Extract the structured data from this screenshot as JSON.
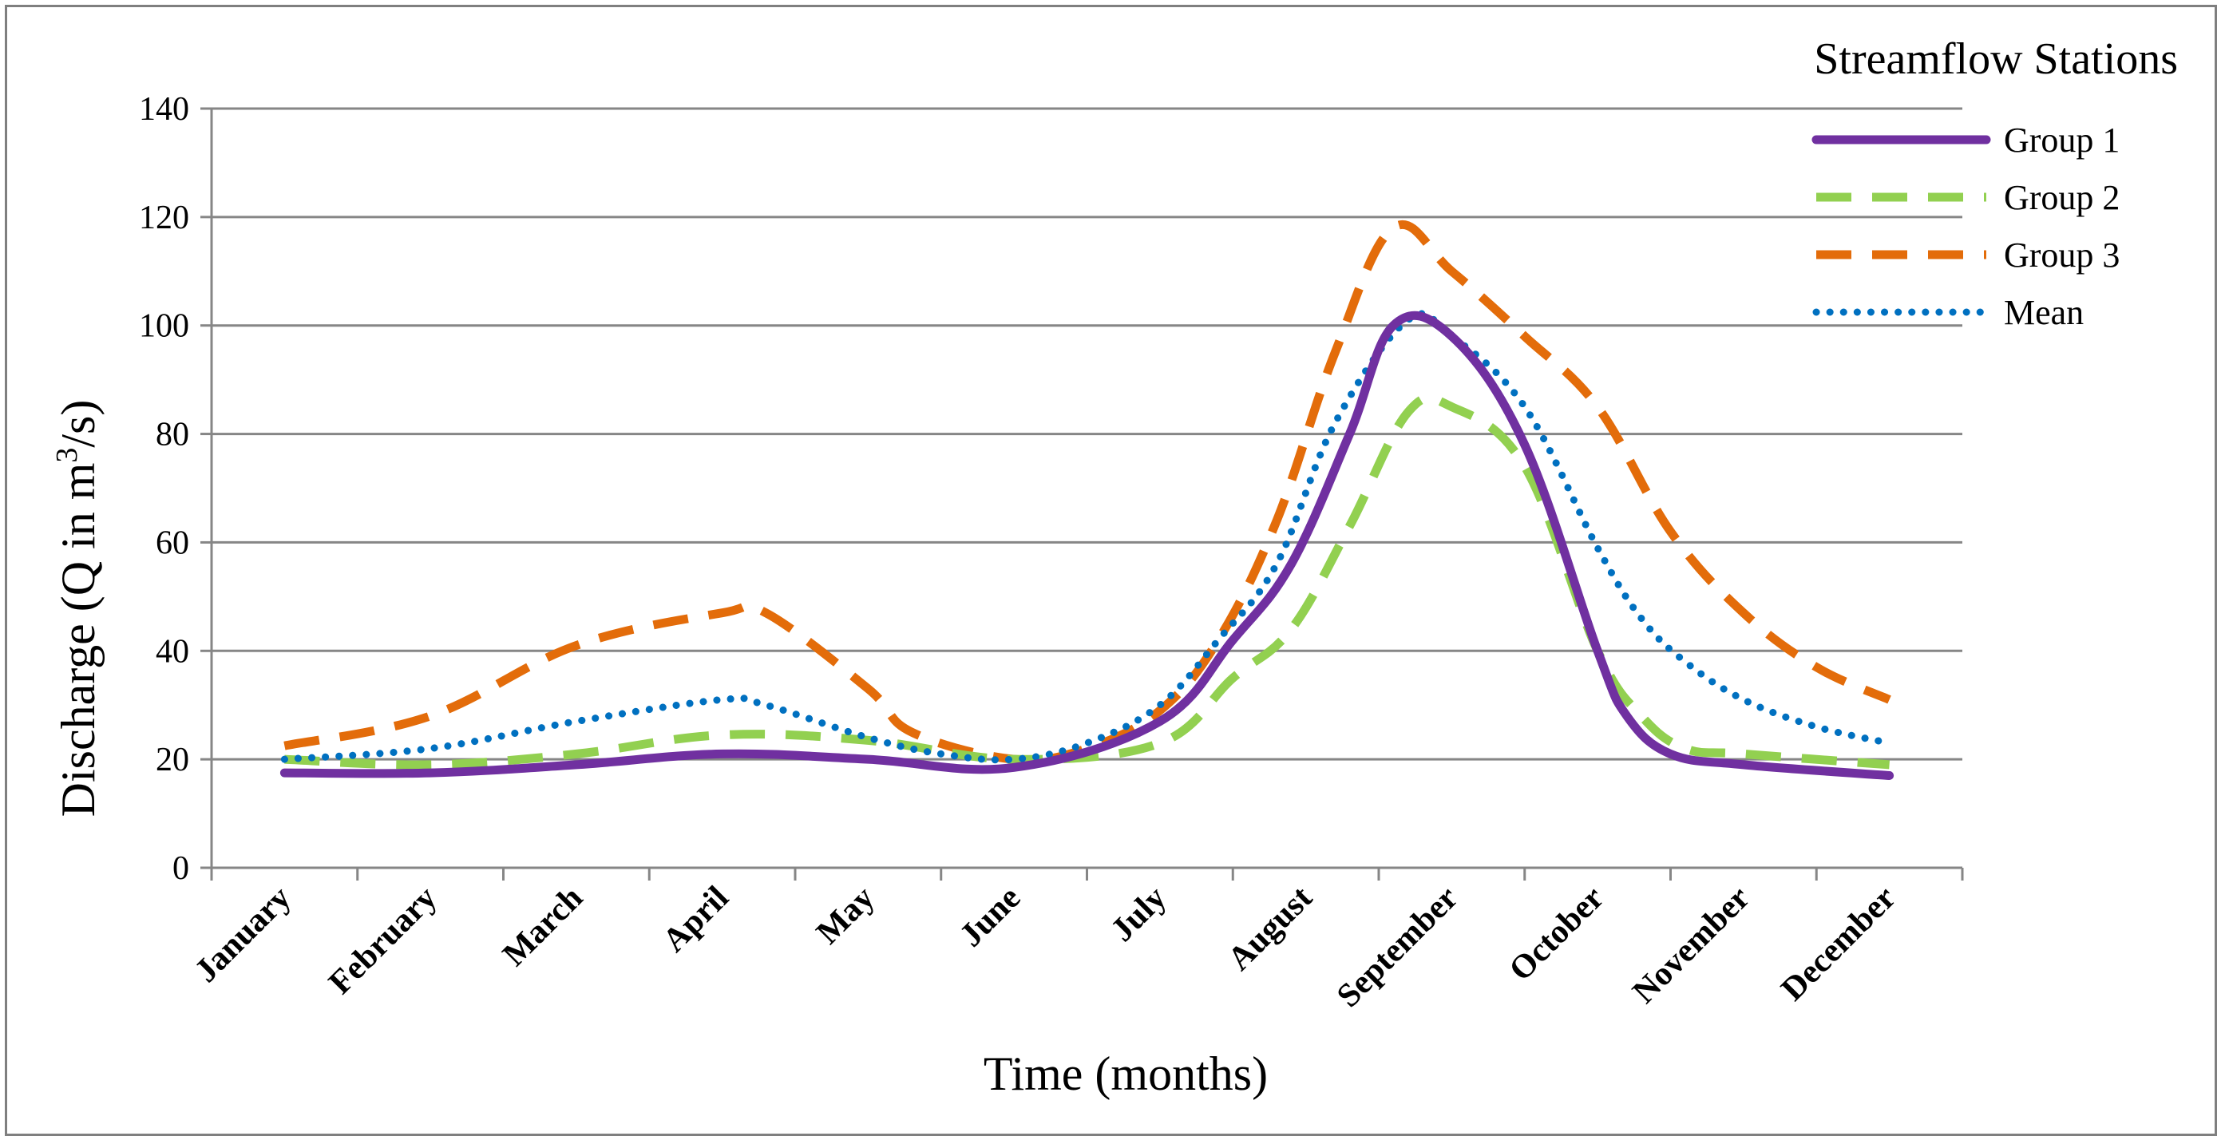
{
  "chart_data": {
    "type": "line",
    "title": "",
    "xlabel": "Time (months)",
    "ylabel_prefix": "Discharge (Q in m",
    "ylabel_sup": "3",
    "ylabel_suffix": "/s)",
    "ylim": [
      0,
      140
    ],
    "ytick_step": 20,
    "grid": true,
    "legend_title": "Streamflow Stations",
    "legend_position": "top-right",
    "categories": [
      "January",
      "February",
      "March",
      "April",
      "May",
      "June",
      "July",
      "August",
      "September",
      "October",
      "November",
      "December"
    ],
    "yticks": [
      "0",
      "20",
      "40",
      "60",
      "80",
      "100",
      "120",
      "140"
    ],
    "series": [
      {
        "name": "Group 1",
        "color": "#7030a0",
        "style": "solid",
        "x": [
          0,
          1,
          2,
          3,
          4,
          5,
          6,
          6.5,
          6.9,
          7.3,
          7.6,
          8,
          8.5,
          9,
          9.2,
          9.5,
          10,
          11
        ],
        "values": [
          17.5,
          17.5,
          19,
          21,
          20,
          18.5,
          27,
          42,
          56,
          80,
          100,
          98,
          78,
          40,
          28,
          21,
          19,
          17
        ]
      },
      {
        "name": "Group 2",
        "color": "#92d050",
        "style": "dash",
        "x": [
          0,
          1,
          2,
          3,
          4,
          5,
          6,
          6.5,
          6.9,
          7.3,
          7.7,
          8,
          8.5,
          9,
          9.3,
          9.6,
          10,
          11
        ],
        "values": [
          20,
          19,
          21,
          24.5,
          23.5,
          20,
          23,
          35,
          44,
          63,
          84,
          85,
          74,
          40,
          28,
          22,
          21,
          19
        ]
      },
      {
        "name": "Group 3",
        "color": "#e36c0a",
        "style": "dash",
        "x": [
          0,
          1,
          2,
          3,
          3.3,
          4,
          4.3,
          5,
          5.5,
          6,
          6.4,
          6.8,
          7.2,
          7.6,
          8,
          8.5,
          9,
          9.5,
          10,
          10.5,
          11
        ],
        "values": [
          22.5,
          28,
          41,
          47,
          47,
          33,
          25,
          20,
          22,
          29,
          42,
          64,
          95,
          118,
          110,
          98,
          85,
          62,
          47,
          37,
          31
        ]
      },
      {
        "name": "Mean",
        "color": "#0070c0",
        "style": "dot",
        "x": [
          0,
          1,
          2,
          3,
          3.3,
          4,
          4.5,
          5,
          5.5,
          6,
          6.4,
          6.8,
          7.2,
          7.7,
          8,
          8.5,
          9,
          9.3,
          9.6,
          10,
          10.5,
          11
        ],
        "values": [
          20,
          22,
          27,
          31,
          30,
          24,
          21,
          20,
          23,
          30,
          42,
          56,
          82,
          101,
          98,
          85,
          59,
          46,
          38,
          31,
          26,
          23
        ]
      }
    ]
  }
}
